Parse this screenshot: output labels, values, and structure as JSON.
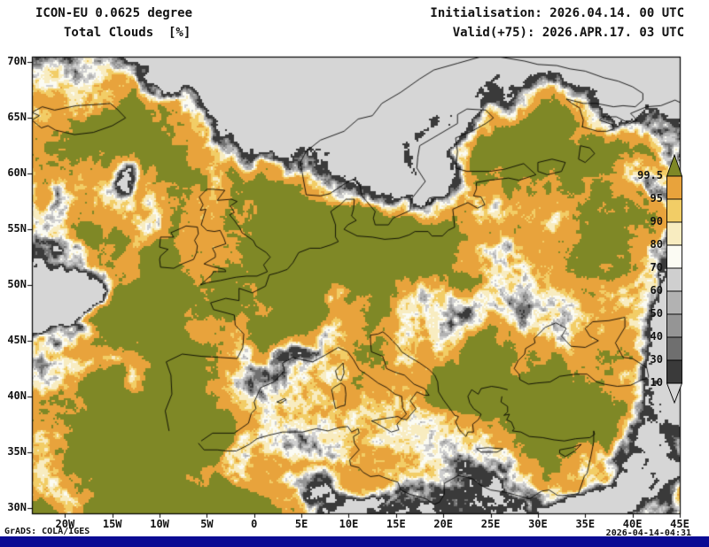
{
  "header": {
    "model": "ICON-EU 0.0625 degree",
    "variable": "Total Clouds  [%]",
    "init": "Initialisation: 2026.04.14. 00 UTC",
    "valid": "Valid(+75): 2026.APR.17. 03 UTC"
  },
  "axes": {
    "lat_labels": [
      "70N",
      "65N",
      "60N",
      "55N",
      "50N",
      "45N",
      "40N",
      "35N",
      "30N"
    ],
    "lon_labels": [
      "20W",
      "15W",
      "10W",
      "5W",
      "0",
      "5E",
      "10E",
      "15E",
      "20E",
      "25E",
      "30E",
      "35E",
      "40E",
      "45E"
    ]
  },
  "legend": {
    "levels": [
      "99.5",
      "95",
      "90",
      "80",
      "70",
      "60",
      "50",
      "40",
      "30",
      "10"
    ],
    "segment_colors": [
      "#e8a33c",
      "#f2cd66",
      "#f8ecc0",
      "#fbfbf3",
      "#cfcfcf",
      "#b2b2b2",
      "#959595",
      "#6f6f6f",
      "#3a3a3a"
    ],
    "above_color": "#7f8826",
    "below_color": "#d6d6d6"
  },
  "footer": {
    "credit": "GrADS: COLA/IGES",
    "timestamp": "2026-04-14-04:31"
  },
  "colors": {
    "background": "#ffffff",
    "map_background": "#d6d6d6",
    "frame": "#000000",
    "text": "#121212",
    "bottom_bar": "#0b0b93"
  },
  "chart_data": {
    "type": "heatmap",
    "title": "Total Clouds [%]",
    "model": "ICON-EU 0.0625 degree",
    "init_time": "2026.04.14. 00 UTC",
    "valid_time": "2026.APR.17. 03 UTC",
    "forecast_hour": "+75",
    "unit": "%",
    "lon_range": [
      "20W",
      "45E"
    ],
    "lat_range": [
      "30N",
      "70N"
    ],
    "levels": [
      10,
      30,
      40,
      50,
      60,
      70,
      80,
      90,
      95,
      99.5
    ],
    "legend_position": "right",
    "grid": false
  }
}
